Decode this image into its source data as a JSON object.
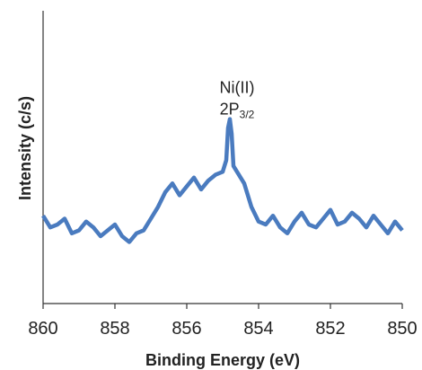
{
  "chart_data": {
    "type": "line",
    "title": "",
    "xlabel": "Binding Energy (eV)",
    "ylabel": "Intensity (c/s)",
    "x_reversed": true,
    "xlim": [
      860,
      850
    ],
    "ylim": [
      0,
      100
    ],
    "y_tick_labels": false,
    "grid": false,
    "legend": "none",
    "x_ticks": [
      {
        "value": 860,
        "label": "860"
      },
      {
        "value": 858,
        "label": "858"
      },
      {
        "value": 856,
        "label": "856"
      },
      {
        "value": 854,
        "label": "854"
      },
      {
        "value": 852,
        "label": "852"
      },
      {
        "value": 850,
        "label": "850"
      }
    ],
    "annotation": {
      "line1": "Ni(II)",
      "main": "2P",
      "sub": "3/2",
      "x": 854.8,
      "y": 72
    },
    "series": [
      {
        "color": "#4a7bbf",
        "x": [
          860.0,
          859.8,
          859.6,
          859.4,
          859.2,
          859.0,
          858.8,
          858.6,
          858.4,
          858.2,
          858.0,
          857.8,
          857.6,
          857.4,
          857.2,
          857.0,
          856.8,
          856.6,
          856.4,
          856.2,
          856.0,
          855.8,
          855.6,
          855.4,
          855.2,
          855.0,
          854.9,
          854.85,
          854.8,
          854.75,
          854.7,
          854.6,
          854.4,
          854.2,
          854.0,
          853.8,
          853.6,
          853.4,
          853.2,
          853.0,
          852.8,
          852.6,
          852.4,
          852.2,
          852.0,
          851.8,
          851.6,
          851.4,
          851.2,
          851.0,
          850.8,
          850.6,
          850.4,
          850.2,
          850.0
        ],
        "y": [
          30,
          26,
          27,
          29,
          24,
          25,
          28,
          26,
          23,
          25,
          27,
          23,
          21,
          24,
          25,
          29,
          33,
          38,
          41,
          37,
          40,
          43,
          39,
          42,
          44,
          45,
          49,
          60,
          63,
          58,
          47,
          45,
          41,
          33,
          28,
          27,
          30,
          26,
          24,
          28,
          31,
          27,
          26,
          29,
          32,
          27,
          28,
          31,
          29,
          26,
          30,
          27,
          24,
          28,
          25
        ]
      }
    ]
  }
}
